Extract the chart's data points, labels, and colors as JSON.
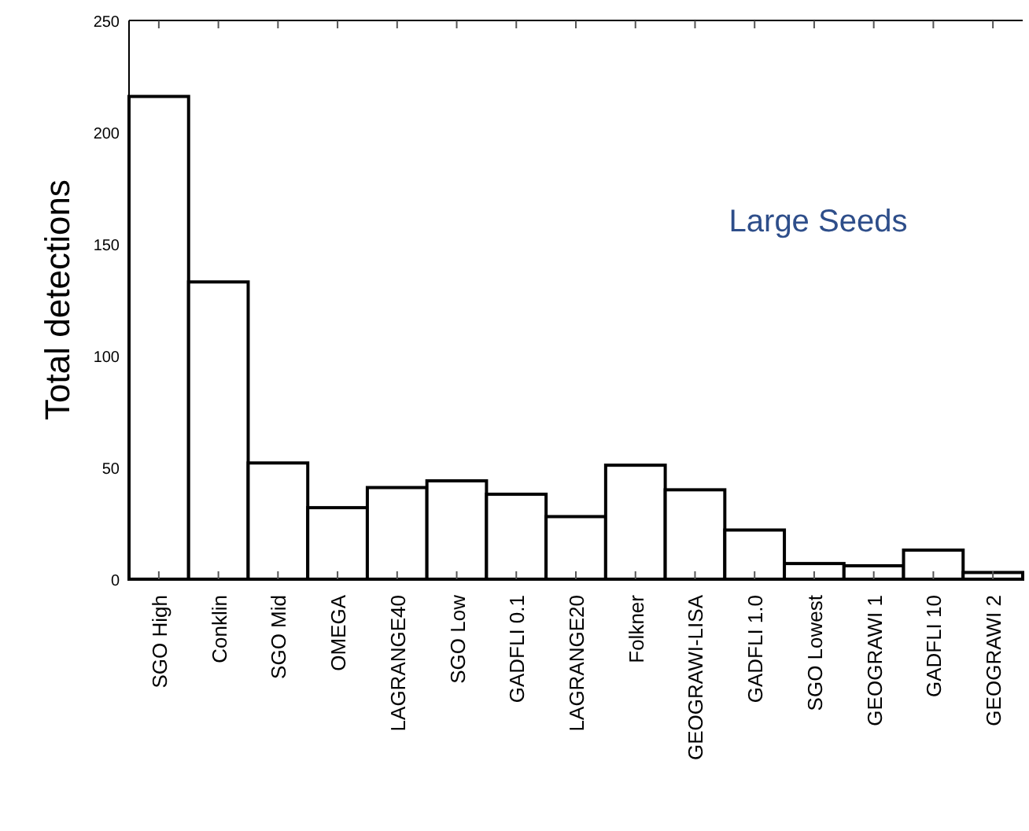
{
  "chart_data": {
    "type": "bar",
    "ylabel": "Total detections",
    "annotations": [
      "Large Seeds"
    ],
    "categories": [
      "SGO High",
      "Conklin",
      "SGO Mid",
      "OMEGA",
      "LAGRANGE40",
      "SGO Low",
      "GADFLI 0.1",
      "LAGRANGE20",
      "Folkner",
      "GEOGRAWI-LISA",
      "GADFLI 1.0",
      "SGO Lowest",
      "GEOGRAWI 1",
      "GADFLI 10",
      "GEOGRAWI 2"
    ],
    "values": [
      216,
      133,
      52,
      32,
      41,
      44,
      38,
      28,
      51,
      40,
      22,
      7,
      6,
      13,
      3
    ],
    "color": "#ffffff",
    "ylim": [
      0,
      250
    ],
    "yticks": [
      0,
      50,
      100,
      150,
      200,
      250
    ],
    "grid": false
  }
}
